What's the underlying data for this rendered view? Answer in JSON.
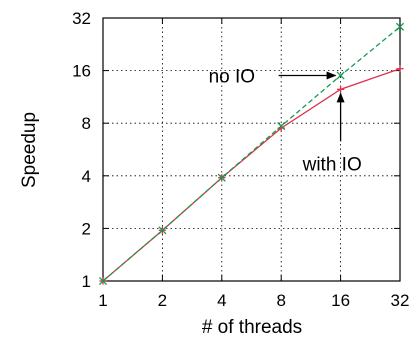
{
  "chart_data": {
    "type": "line",
    "xscale": "log2",
    "yscale": "log2",
    "x": [
      1,
      2,
      4,
      8,
      16,
      32
    ],
    "xlabel": "# of threads",
    "ylabel": "Speedup",
    "xticks": [
      "1",
      "2",
      "4",
      "8",
      "16",
      "32"
    ],
    "yticks": [
      "1",
      "2",
      "4",
      "8",
      "16",
      "32"
    ],
    "xlim": [
      1,
      32
    ],
    "ylim": [
      1,
      32
    ],
    "grid": "dotted",
    "series": [
      {
        "key": "with-io",
        "color": "#e0304a",
        "dash": "solid",
        "values": [
          1,
          1.95,
          3.9,
          7.5,
          12.5,
          16.4
        ]
      },
      {
        "key": "no-io",
        "color": "#1a9a50",
        "dash": "dashed",
        "values": [
          1,
          1.95,
          3.9,
          7.7,
          15.0,
          28.5
        ]
      }
    ],
    "annotations": [
      {
        "key": "no-io",
        "text": "no IO",
        "x": 16,
        "y": 15.0
      },
      {
        "key": "with-io",
        "text": "with IO",
        "x": 16,
        "y": 12.5
      }
    ]
  }
}
